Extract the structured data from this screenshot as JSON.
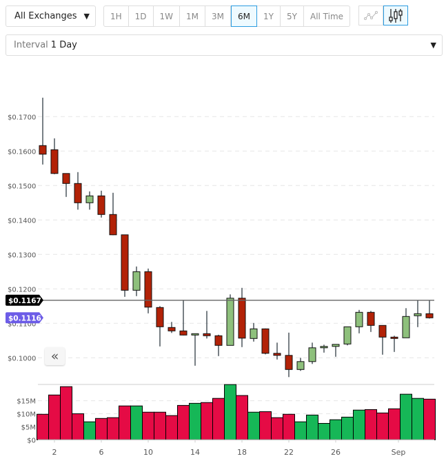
{
  "toolbar": {
    "exchange": "All Exchanges",
    "ranges": [
      "1H",
      "1D",
      "1W",
      "1M",
      "3M",
      "6M",
      "1Y",
      "5Y",
      "All Time"
    ],
    "active_range": "6M",
    "chart_types": [
      "line-chart-icon",
      "candlestick-chart-icon"
    ],
    "active_chart_type": "candlestick-chart-icon",
    "interval_label": "Interval",
    "interval_value": "1 Day",
    "collapse_icon": "double-chevron-left-icon"
  },
  "colors": {
    "up_candle": "#8ec07c",
    "down_candle": "#b22207",
    "up_volume": "#16b757",
    "down_volume": "#e50b45",
    "last_price_tag": "#000000",
    "current_price_tag": "#6c5ce7"
  },
  "chart_data": {
    "type": "candlestick",
    "price_axis": {
      "ticks": [
        "$0.1000",
        "$0.1100",
        "$0.1200",
        "$0.1300",
        "$0.1400",
        "$0.1500",
        "$0.1600",
        "$0.1700"
      ],
      "tick_values": [
        0.1,
        0.11,
        0.12,
        0.13,
        0.14,
        0.15,
        0.16,
        0.17
      ],
      "grid": true
    },
    "volume_axis": {
      "ticks": [
        "$0",
        "$5M",
        "$10M",
        "$15M"
      ],
      "tick_values": [
        0,
        5,
        10,
        15
      ],
      "unit": "M"
    },
    "x_ticks": [
      {
        "label": "2",
        "day": 2
      },
      {
        "label": "6",
        "day": 6
      },
      {
        "label": "10",
        "day": 10
      },
      {
        "label": "14",
        "day": 14
      },
      {
        "label": "18",
        "day": 18
      },
      {
        "label": "22",
        "day": 22
      },
      {
        "label": "26",
        "day": 26
      },
      {
        "label": "Sep",
        "day": 32
      }
    ],
    "price_lines": [
      {
        "label": "$0.1167",
        "value": 0.1167,
        "kind": "last"
      },
      {
        "label": "$0.1116",
        "value": 0.1116,
        "kind": "current"
      }
    ],
    "candles": [
      {
        "o": 0.1616,
        "h": 0.1755,
        "l": 0.1561,
        "c": 0.1591
      },
      {
        "o": 0.1604,
        "h": 0.1637,
        "l": 0.1533,
        "c": 0.1535
      },
      {
        "o": 0.1535,
        "h": 0.1535,
        "l": 0.1467,
        "c": 0.1506
      },
      {
        "o": 0.1506,
        "h": 0.1539,
        "l": 0.143,
        "c": 0.145
      },
      {
        "o": 0.145,
        "h": 0.1483,
        "l": 0.143,
        "c": 0.147
      },
      {
        "o": 0.147,
        "h": 0.1485,
        "l": 0.1407,
        "c": 0.1416
      },
      {
        "o": 0.1416,
        "h": 0.1479,
        "l": 0.1356,
        "c": 0.1357
      },
      {
        "o": 0.1357,
        "h": 0.1357,
        "l": 0.1177,
        "c": 0.1196
      },
      {
        "o": 0.1196,
        "h": 0.1265,
        "l": 0.1179,
        "c": 0.125
      },
      {
        "o": 0.125,
        "h": 0.1259,
        "l": 0.1129,
        "c": 0.1147
      },
      {
        "o": 0.1146,
        "h": 0.115,
        "l": 0.1033,
        "c": 0.109
      },
      {
        "o": 0.1088,
        "h": 0.1104,
        "l": 0.1072,
        "c": 0.1078
      },
      {
        "o": 0.1078,
        "h": 0.1168,
        "l": 0.1065,
        "c": 0.1066
      },
      {
        "o": 0.1066,
        "h": 0.107,
        "l": 0.0977,
        "c": 0.107
      },
      {
        "o": 0.107,
        "h": 0.1136,
        "l": 0.1056,
        "c": 0.1064
      },
      {
        "o": 0.1064,
        "h": 0.1067,
        "l": 0.1005,
        "c": 0.1036
      },
      {
        "o": 0.1036,
        "h": 0.1184,
        "l": 0.1036,
        "c": 0.1173
      },
      {
        "o": 0.1173,
        "h": 0.1203,
        "l": 0.1031,
        "c": 0.1057
      },
      {
        "o": 0.1056,
        "h": 0.1101,
        "l": 0.1047,
        "c": 0.1084
      },
      {
        "o": 0.1084,
        "h": 0.1085,
        "l": 0.101,
        "c": 0.1013
      },
      {
        "o": 0.1013,
        "h": 0.1044,
        "l": 0.0995,
        "c": 0.1007
      },
      {
        "o": 0.1007,
        "h": 0.1073,
        "l": 0.0944,
        "c": 0.0966
      },
      {
        "o": 0.0966,
        "h": 0.1,
        "l": 0.0962,
        "c": 0.0989
      },
      {
        "o": 0.0989,
        "h": 0.1044,
        "l": 0.0982,
        "c": 0.1029
      },
      {
        "o": 0.1029,
        "h": 0.1038,
        "l": 0.1015,
        "c": 0.1033
      },
      {
        "o": 0.1033,
        "h": 0.1039,
        "l": 0.1003,
        "c": 0.1039
      },
      {
        "o": 0.104,
        "h": 0.109,
        "l": 0.1036,
        "c": 0.109
      },
      {
        "o": 0.109,
        "h": 0.1139,
        "l": 0.1071,
        "c": 0.1132
      },
      {
        "o": 0.1132,
        "h": 0.1136,
        "l": 0.1075,
        "c": 0.1094
      },
      {
        "o": 0.1094,
        "h": 0.1094,
        "l": 0.1009,
        "c": 0.106
      },
      {
        "o": 0.106,
        "h": 0.1064,
        "l": 0.1017,
        "c": 0.1056
      },
      {
        "o": 0.1058,
        "h": 0.1144,
        "l": 0.1058,
        "c": 0.112
      },
      {
        "o": 0.1122,
        "h": 0.1167,
        "l": 0.1089,
        "c": 0.1128
      },
      {
        "o": 0.1128,
        "h": 0.1167,
        "l": 0.1114,
        "c": 0.1116
      }
    ],
    "volumes_musd": [
      9.8,
      17.2,
      20.4,
      10.0,
      6.9,
      8.2,
      8.5,
      13.0,
      13.0,
      10.6,
      10.6,
      9.3,
      13.2,
      14.0,
      14.3,
      15.9,
      21.2,
      17.0,
      10.6,
      10.8,
      8.5,
      9.8,
      6.9,
      9.5,
      6.3,
      7.7,
      8.7,
      11.4,
      11.6,
      10.3,
      11.9,
      17.5,
      15.9,
      15.6
    ],
    "volume_up": [
      false,
      false,
      false,
      false,
      true,
      false,
      false,
      false,
      true,
      false,
      false,
      false,
      false,
      true,
      false,
      false,
      true,
      false,
      true,
      false,
      false,
      false,
      true,
      true,
      true,
      true,
      true,
      true,
      false,
      false,
      false,
      true,
      true,
      false
    ]
  }
}
